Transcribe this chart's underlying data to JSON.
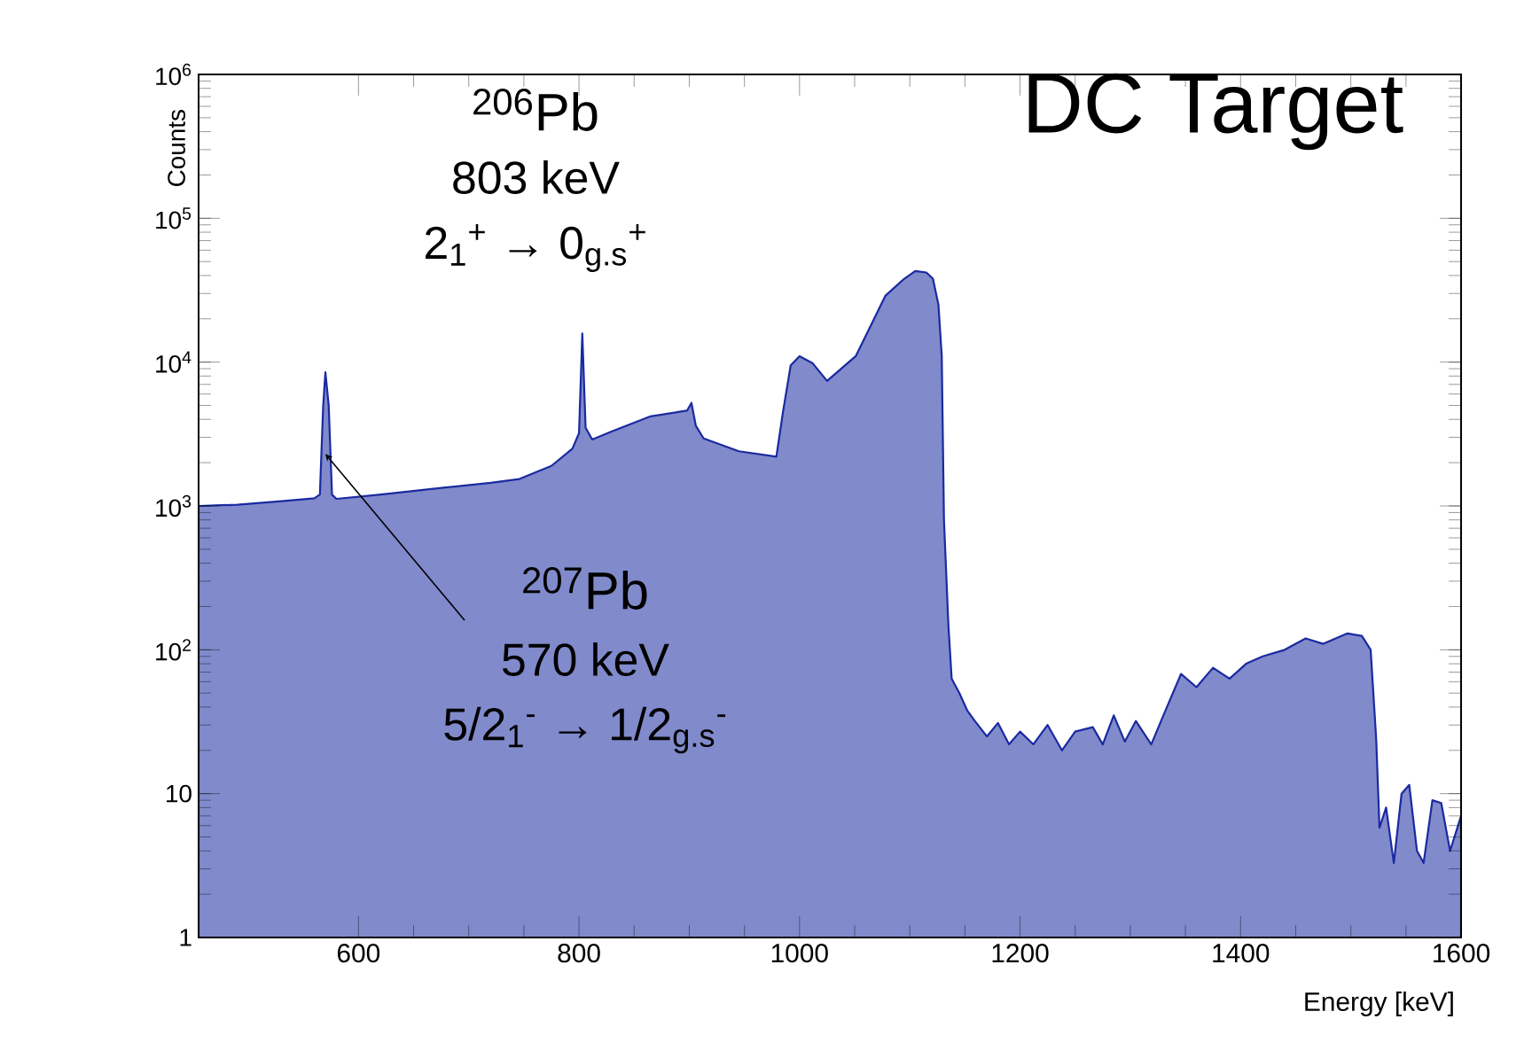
{
  "chart_data": {
    "type": "area",
    "xlabel": "Energy [keV]",
    "ylabel": "Counts",
    "log": "y",
    "grid": false,
    "xlim": [
      455,
      1600
    ],
    "ylim": [
      1,
      1000000
    ],
    "xticks": [
      600,
      800,
      1000,
      1200,
      1400,
      1600
    ],
    "yticks": [
      1,
      10,
      {
        "value": 100,
        "label": "10$^{2}$"
      },
      {
        "value": 1000,
        "label": "10$^{3}$"
      },
      {
        "value": 10000,
        "label": "10$^{4}$"
      },
      {
        "value": 100000,
        "label": "10$^{5}$"
      },
      {
        "value": 1000000,
        "label": "10$^{6}$"
      }
    ],
    "annotations": [
      "DC Target",
      "$^{206}$Pb",
      "803 keV",
      "2$_{1}$$^{+}$ → 0$_{g.s}$$^{+}$",
      {
        "text": "$^{207}$Pb",
        "x": 570,
        "y": 2300
      },
      "570 keV",
      "5/2$_{1}$$^{-}$ → 1/2$_{g.s}$$^{-}$"
    ],
    "series": [
      {
        "color": "#1a2aa0",
        "x": [
          455,
          490,
          530,
          560,
          565,
          568,
          570,
          573,
          576,
          580,
          620,
          677,
          720,
          746,
          775,
          794,
          800,
          803,
          806,
          812,
          830,
          865,
          890,
          898,
          902,
          906,
          913,
          945,
          979,
          985,
          992,
          1000,
          1012,
          1025,
          1051,
          1078,
          1095,
          1105,
          1115,
          1121,
          1126,
          1129,
          1131,
          1135,
          1138,
          1145,
          1152,
          1159,
          1170,
          1180,
          1190,
          1200,
          1212,
          1225,
          1238,
          1250,
          1266,
          1275,
          1285,
          1295,
          1305,
          1319,
          1330,
          1346,
          1360,
          1375,
          1390,
          1405,
          1420,
          1440,
          1459,
          1475,
          1497,
          1510,
          1518,
          1523,
          1526,
          1532,
          1539,
          1546,
          1553,
          1560,
          1566,
          1574,
          1582,
          1590,
          1600
        ],
        "values": [
          1000,
          1020,
          1080,
          1130,
          1200,
          5000,
          8500,
          5000,
          1200,
          1120,
          1200,
          1340,
          1450,
          1540,
          1900,
          2500,
          3200,
          15800,
          3500,
          2900,
          3300,
          4200,
          4500,
          4600,
          5200,
          3600,
          2950,
          2400,
          2200,
          4500,
          9500,
          11000,
          9800,
          7400,
          11000,
          29000,
          38000,
          43000,
          42000,
          38000,
          25000,
          11000,
          800,
          150,
          63,
          50,
          38,
          32,
          25,
          31,
          22,
          27,
          22,
          30,
          20,
          27,
          29,
          22,
          35,
          23,
          32,
          22,
          35,
          68,
          55,
          75,
          63,
          80,
          90,
          100,
          120,
          110,
          130,
          125,
          100,
          24,
          5.8,
          8,
          3.3,
          10,
          11.5,
          4,
          3.3,
          9,
          8.6,
          4,
          7
        ]
      }
    ]
  }
}
